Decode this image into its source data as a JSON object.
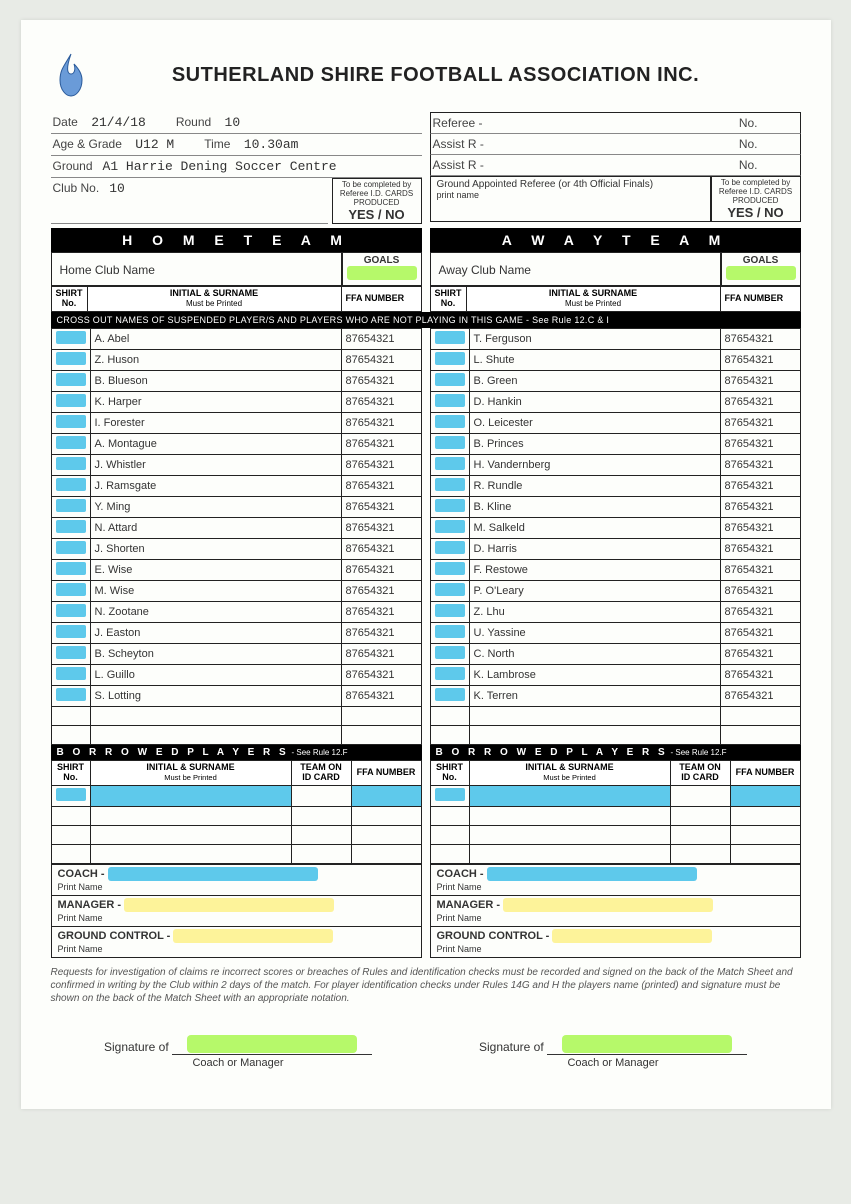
{
  "org_title": "SUTHERLAND SHIRE FOOTBALL ASSOCIATION INC.",
  "match": {
    "date_label": "Date",
    "date": "21/4/18",
    "round_label": "Round",
    "round": "10",
    "age_label": "Age & Grade",
    "age": "U12 M",
    "time_label": "Time",
    "time": "10.30am",
    "ground_label": "Ground",
    "ground": "A1 Harrie Dening Soccer Centre",
    "clubno_label": "Club No.",
    "clubno": "10",
    "referee_label": "Referee -",
    "referee_no_label": "No.",
    "assist1_label": "Assist R -",
    "assist1_no_label": "No.",
    "assist2_label": "Assist R -",
    "assist2_no_label": "No.",
    "ground_ref_label": "Ground Appointed Referee (or 4th Official Finals)",
    "ground_ref_sub": "print name",
    "idcard_note": "To be completed by Referee I.D. CARDS PRODUCED",
    "yesno": "YES / NO"
  },
  "sections": {
    "home_team": "H O M E    T E A M",
    "away_team": "A W A Y     T E A M",
    "goals": "GOALS",
    "home_club": "Home Club Name",
    "away_club": "Away Club Name",
    "shirt_no": "SHIRT No.",
    "init_surname": "INITIAL & SURNAME",
    "must_print": "Must be Printed",
    "ffa": "FFA NUMBER",
    "cross_out": "CROSS OUT NAMES OF SUSPENDED PLAYER/S AND PLAYERS WHO ARE NOT PLAYING IN THIS GAME - See Rule 12.C & I",
    "borrowed": "B O R R O W E D   P L A Y E R S",
    "borrowed_rule": "- See Rule 12.F",
    "team_on_id": "TEAM ON ID CARD",
    "coach": "COACH -",
    "manager": "MANAGER -",
    "ground_control": "GROUND CONTROL -",
    "print_name": "Print Name",
    "signature_of": "Signature of",
    "coach_or_manager": "Coach or Manager"
  },
  "home_players": [
    {
      "name": "A. Abel",
      "ffa": "87654321"
    },
    {
      "name": "Z. Huson",
      "ffa": "87654321"
    },
    {
      "name": "B. Blueson",
      "ffa": "87654321"
    },
    {
      "name": "K. Harper",
      "ffa": "87654321"
    },
    {
      "name": "I. Forester",
      "ffa": "87654321"
    },
    {
      "name": "A. Montague",
      "ffa": "87654321"
    },
    {
      "name": "J. Whistler",
      "ffa": "87654321"
    },
    {
      "name": "J. Ramsgate",
      "ffa": "87654321"
    },
    {
      "name": "Y. Ming",
      "ffa": "87654321"
    },
    {
      "name": "N. Attard",
      "ffa": "87654321"
    },
    {
      "name": "J. Shorten",
      "ffa": "87654321"
    },
    {
      "name": "E. Wise",
      "ffa": "87654321"
    },
    {
      "name": "M. Wise",
      "ffa": "87654321"
    },
    {
      "name": "N. Zootane",
      "ffa": "87654321"
    },
    {
      "name": "J. Easton",
      "ffa": "87654321"
    },
    {
      "name": "B. Scheyton",
      "ffa": "87654321"
    },
    {
      "name": "L. Guillo",
      "ffa": "87654321"
    },
    {
      "name": "S. Lotting",
      "ffa": "87654321"
    },
    {
      "name": "",
      "ffa": ""
    },
    {
      "name": "",
      "ffa": ""
    }
  ],
  "away_players": [
    {
      "name": "T. Ferguson",
      "ffa": "87654321"
    },
    {
      "name": "L. Shute",
      "ffa": "87654321"
    },
    {
      "name": "B. Green",
      "ffa": "87654321"
    },
    {
      "name": "D. Hankin",
      "ffa": "87654321"
    },
    {
      "name": "O. Leicester",
      "ffa": "87654321"
    },
    {
      "name": "B. Princes",
      "ffa": "87654321"
    },
    {
      "name": "H. Vandernberg",
      "ffa": "87654321"
    },
    {
      "name": "R. Rundle",
      "ffa": "87654321"
    },
    {
      "name": "B. Kline",
      "ffa": "87654321"
    },
    {
      "name": "M. Salkeld",
      "ffa": "87654321"
    },
    {
      "name": "D. Harris",
      "ffa": "87654321"
    },
    {
      "name": "F. Restowe",
      "ffa": "87654321"
    },
    {
      "name": "P. O'Leary",
      "ffa": "87654321"
    },
    {
      "name": "Z. Lhu",
      "ffa": "87654321"
    },
    {
      "name": "U. Yassine",
      "ffa": "87654321"
    },
    {
      "name": "C. North",
      "ffa": "87654321"
    },
    {
      "name": "K. Lambrose",
      "ffa": "87654321"
    },
    {
      "name": "K. Terren",
      "ffa": "87654321"
    },
    {
      "name": "",
      "ffa": ""
    },
    {
      "name": "",
      "ffa": ""
    }
  ],
  "footnote": "Requests for investigation of claims re incorrect scores or breaches of Rules and identification checks must be recorded and signed on the back of the Match Sheet and confirmed in writing by the Club within 2 days of the match. For player identification checks under Rules 14G and H the players name (printed) and signature must be shown on the back of the Match Sheet with an appropriate notation.",
  "colors": {
    "highlight_green": "#b6f96a",
    "highlight_blue": "#5ec9eb",
    "highlight_yellow": "#fdf39a"
  }
}
